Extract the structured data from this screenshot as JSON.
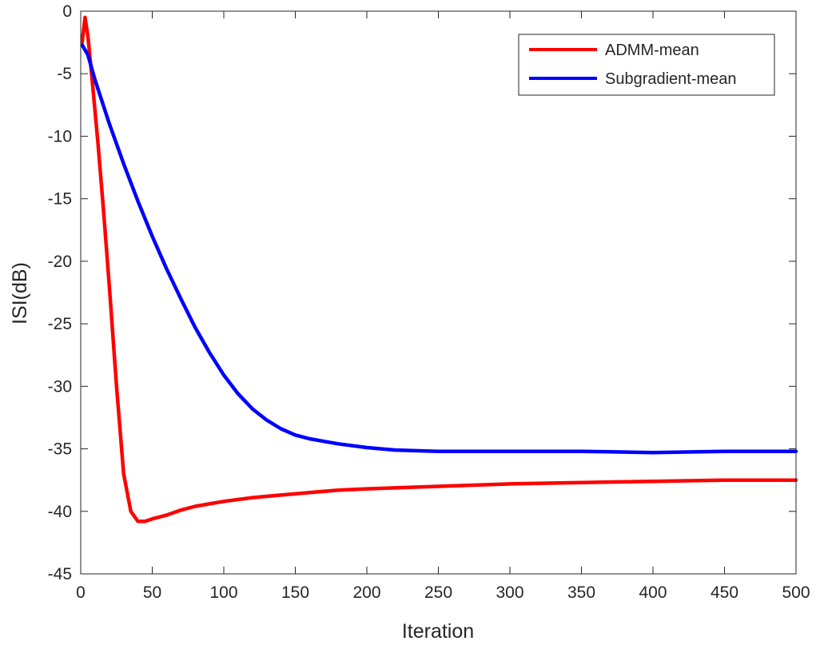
{
  "chart_data": {
    "type": "line",
    "xlabel": "Iteration",
    "ylabel": "ISI(dB)",
    "xlim": [
      0,
      500
    ],
    "ylim": [
      -45,
      0
    ],
    "xticks": [
      0,
      50,
      100,
      150,
      200,
      250,
      300,
      350,
      400,
      450,
      500
    ],
    "yticks": [
      0,
      -5,
      -10,
      -15,
      -20,
      -25,
      -30,
      -35,
      -40,
      -45
    ],
    "grid": false,
    "legend_position": "top-right",
    "series": [
      {
        "name": "ADMM-mean",
        "color": "#ff0000",
        "x": [
          1,
          3,
          5,
          8,
          12,
          16,
          20,
          25,
          30,
          35,
          40,
          45,
          50,
          60,
          70,
          80,
          90,
          100,
          120,
          140,
          160,
          180,
          200,
          250,
          300,
          350,
          400,
          450,
          500
        ],
        "y": [
          -2.5,
          -0.5,
          -2.0,
          -5.5,
          -10.5,
          -16.0,
          -22.0,
          -30.0,
          -37.0,
          -40.0,
          -40.8,
          -40.8,
          -40.6,
          -40.3,
          -39.9,
          -39.6,
          -39.4,
          -39.2,
          -38.9,
          -38.7,
          -38.5,
          -38.3,
          -38.2,
          -38.0,
          -37.8,
          -37.7,
          -37.6,
          -37.5,
          -37.5
        ]
      },
      {
        "name": "Subgradient-mean",
        "color": "#0000ff",
        "x": [
          1,
          5,
          10,
          20,
          30,
          40,
          50,
          60,
          70,
          80,
          90,
          100,
          110,
          120,
          130,
          140,
          150,
          160,
          170,
          180,
          200,
          220,
          250,
          300,
          350,
          400,
          450,
          500
        ],
        "y": [
          -2.7,
          -3.5,
          -5.5,
          -9.0,
          -12.2,
          -15.2,
          -18.0,
          -20.6,
          -23.0,
          -25.3,
          -27.3,
          -29.1,
          -30.6,
          -31.8,
          -32.7,
          -33.4,
          -33.9,
          -34.2,
          -34.4,
          -34.6,
          -34.9,
          -35.1,
          -35.2,
          -35.2,
          -35.2,
          -35.3,
          -35.2,
          -35.2
        ]
      }
    ]
  }
}
